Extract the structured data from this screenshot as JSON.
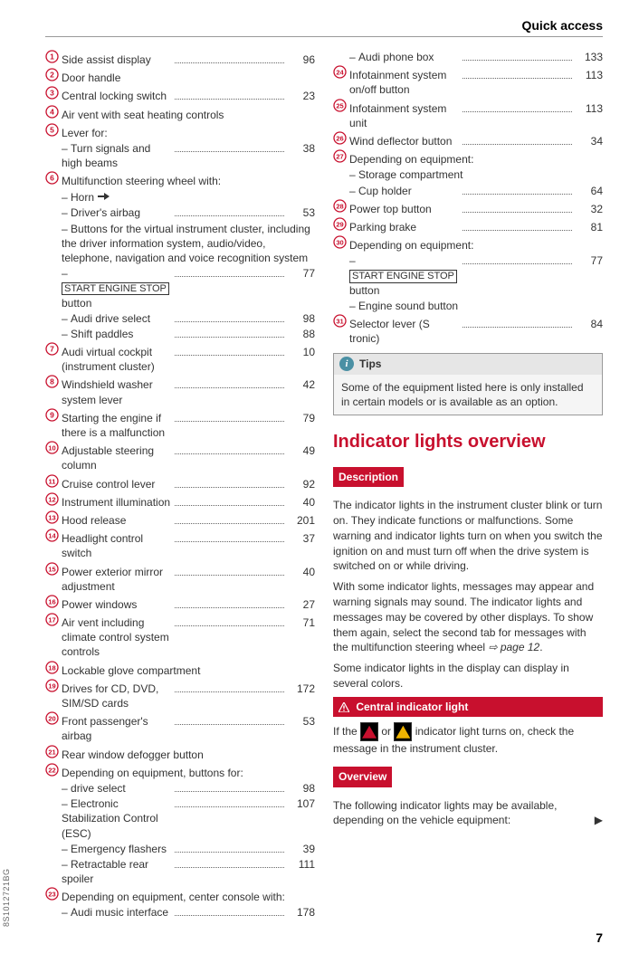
{
  "header": "Quick access",
  "page_number": "7",
  "doc_code": "8S1012721BG",
  "marker_color": "#c8102e",
  "left_items": [
    {
      "n": 1,
      "label": "Side assist display",
      "pg": "96"
    },
    {
      "n": 2,
      "label": "Door handle",
      "pg": ""
    },
    {
      "n": 3,
      "label": "Central locking switch",
      "pg": "23"
    },
    {
      "n": 4,
      "label": "Air vent with seat heating controls",
      "pg": ""
    },
    {
      "n": 5,
      "label": "Lever for:",
      "pg": ""
    },
    {
      "sub": true,
      "label": "Turn signals and high beams",
      "pg": "38"
    },
    {
      "n": 6,
      "label": "Multifunction steering wheel with:",
      "pg": ""
    },
    {
      "sub": true,
      "label": "Horn",
      "horn": true,
      "pg": ""
    },
    {
      "sub": true,
      "label": "Driver's airbag",
      "pg": "53"
    },
    {
      "sub": true,
      "label": "Buttons for the virtual instrument cluster, including the driver information system, audio/video, telephone, navigation and voice recognition system",
      "pg": ""
    },
    {
      "sub": true,
      "boxed": "START ENGINE STOP",
      "after": " button",
      "pg": "77"
    },
    {
      "sub": true,
      "label": "Audi drive select",
      "pg": "98"
    },
    {
      "sub": true,
      "label": "Shift paddles",
      "pg": "88"
    },
    {
      "n": 7,
      "label": "Audi virtual cockpit (instrument cluster)",
      "pg": "10"
    },
    {
      "n": 8,
      "label": "Windshield washer system lever",
      "pg": "42"
    },
    {
      "n": 9,
      "label": "Starting the engine if there is a malfunction",
      "pg": "79"
    },
    {
      "n": 10,
      "label": "Adjustable steering column",
      "pg": "49"
    },
    {
      "n": 11,
      "label": "Cruise control lever",
      "pg": "92"
    },
    {
      "n": 12,
      "label": "Instrument illumination",
      "pg": "40"
    },
    {
      "n": 13,
      "label": "Hood release",
      "pg": "201"
    },
    {
      "n": 14,
      "label": "Headlight control switch",
      "pg": "37"
    },
    {
      "n": 15,
      "label": "Power exterior mirror adjustment",
      "pg": "40"
    },
    {
      "n": 16,
      "label": "Power windows",
      "pg": "27"
    },
    {
      "n": 17,
      "label": "Air vent including climate control system controls",
      "pg": "71"
    },
    {
      "n": 18,
      "label": "Lockable glove compartment",
      "pg": ""
    },
    {
      "n": 19,
      "label": "Drives for CD, DVD, SIM/SD cards",
      "pg": "172"
    },
    {
      "n": 20,
      "label": "Front passenger's airbag",
      "pg": "53"
    },
    {
      "n": 21,
      "label": "Rear window defogger button",
      "pg": ""
    },
    {
      "n": 22,
      "label": "Depending on equipment, buttons for:",
      "pg": ""
    },
    {
      "sub": true,
      "label": "drive select",
      "pg": "98"
    },
    {
      "sub": true,
      "label": "Electronic Stabilization Control (ESC)",
      "pg": "107"
    },
    {
      "sub": true,
      "label": "Emergency flashers",
      "pg": "39"
    },
    {
      "sub": true,
      "label": "Retractable rear spoiler",
      "pg": "111"
    },
    {
      "n": 23,
      "label": "Depending on equipment, center console with:",
      "pg": ""
    },
    {
      "sub": true,
      "label": "Audi music interface",
      "pg": "178"
    }
  ],
  "right_items": [
    {
      "sub": true,
      "label": "Audi phone box",
      "pg": "133"
    },
    {
      "n": 24,
      "label": "Infotainment system on/off button",
      "pg": "113"
    },
    {
      "n": 25,
      "label": "Infotainment system unit",
      "pg": "113"
    },
    {
      "n": 26,
      "label": "Wind deflector button",
      "pg": "34"
    },
    {
      "n": 27,
      "label": "Depending on equipment:",
      "pg": ""
    },
    {
      "sub": true,
      "label": "Storage compartment",
      "pg": ""
    },
    {
      "sub": true,
      "label": "Cup holder",
      "pg": "64"
    },
    {
      "n": 28,
      "label": "Power top button",
      "pg": "32"
    },
    {
      "n": 29,
      "label": "Parking brake",
      "pg": "81"
    },
    {
      "n": 30,
      "label": "Depending on equipment:",
      "pg": ""
    },
    {
      "sub": true,
      "boxed": "START ENGINE STOP",
      "after": " button",
      "pg": "77"
    },
    {
      "sub": true,
      "label": "Engine sound button",
      "pg": ""
    },
    {
      "n": 31,
      "label": "Selector lever (S tronic)",
      "pg": "84"
    }
  ],
  "tips": {
    "title": "Tips",
    "body": "Some of the equipment listed here is only installed in certain models or is available as an option."
  },
  "section_title": "Indicator lights overview",
  "description_label": "Description",
  "para1": "The indicator lights in the instrument cluster blink or turn on. They indicate functions or malfunctions. Some warning and indicator lights turn on when you switch the ignition on and must turn off when the drive system is switched on or while driving.",
  "para2": "With some indicator lights, messages may appear and warning signals may sound. The indicator lights and messages may be covered by other displays. To show them again, select the second tab for messages with the multifunction steering wheel ",
  "para2_ref": "⇨ page 12",
  "para2_end": ".",
  "para3": "Some indicator lights in the display can display in several colors.",
  "central_label": "Central indicator light",
  "central_text_a": "If the ",
  "central_text_b": " or ",
  "central_text_c": " indicator light turns on, check the message in the instrument cluster.",
  "overview_label": "Overview",
  "overview_text": "The following indicator lights may be available, depending on the vehicle equipment:"
}
